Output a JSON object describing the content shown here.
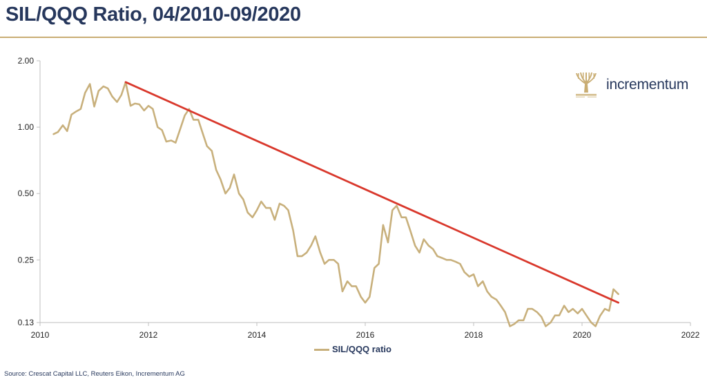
{
  "header": {
    "title": "SIL/QQQ Ratio, 04/2010-09/2020"
  },
  "source": "Source: Crescat Capital LLC, Reuters Eikon, Incrementum AG",
  "logo": {
    "text": "incrementum",
    "icon": "tree-icon"
  },
  "colors": {
    "title": "#26375c",
    "accent_rule": "#c9ad73",
    "series": "#c8b07c",
    "trendline": "#d9382c"
  },
  "chart_data": {
    "type": "line",
    "title": "SIL/QQQ Ratio, 04/2010-09/2020",
    "xlabel": "",
    "ylabel": "",
    "yscale": "log",
    "xlim": [
      2010,
      2022
    ],
    "ylim": [
      0.13,
      2.0
    ],
    "x_ticks": [
      "2010",
      "2012",
      "2014",
      "2016",
      "2018",
      "2020",
      "2022"
    ],
    "y_ticks": [
      "2.00",
      "1.00",
      "0.50",
      "0.25",
      "0.13"
    ],
    "grid": false,
    "legend": "bottom-center",
    "series": [
      {
        "name": "SIL/QQQ ratio",
        "x": [
          2010.25,
          2010.33,
          2010.42,
          2010.5,
          2010.58,
          2010.67,
          2010.75,
          2010.83,
          2010.92,
          2011.0,
          2011.08,
          2011.17,
          2011.25,
          2011.33,
          2011.42,
          2011.5,
          2011.58,
          2011.67,
          2011.75,
          2011.83,
          2011.92,
          2012.0,
          2012.08,
          2012.17,
          2012.25,
          2012.33,
          2012.42,
          2012.5,
          2012.58,
          2012.67,
          2012.75,
          2012.83,
          2012.92,
          2013.0,
          2013.08,
          2013.17,
          2013.25,
          2013.33,
          2013.42,
          2013.5,
          2013.58,
          2013.67,
          2013.75,
          2013.83,
          2013.92,
          2014.0,
          2014.08,
          2014.17,
          2014.25,
          2014.33,
          2014.42,
          2014.5,
          2014.58,
          2014.67,
          2014.75,
          2014.83,
          2014.92,
          2015.0,
          2015.08,
          2015.17,
          2015.25,
          2015.33,
          2015.42,
          2015.5,
          2015.58,
          2015.67,
          2015.75,
          2015.83,
          2015.92,
          2016.0,
          2016.08,
          2016.17,
          2016.25,
          2016.33,
          2016.42,
          2016.5,
          2016.58,
          2016.67,
          2016.75,
          2016.83,
          2016.92,
          2017.0,
          2017.08,
          2017.17,
          2017.25,
          2017.33,
          2017.42,
          2017.5,
          2017.58,
          2017.67,
          2017.75,
          2017.83,
          2017.92,
          2018.0,
          2018.08,
          2018.17,
          2018.25,
          2018.33,
          2018.42,
          2018.5,
          2018.58,
          2018.67,
          2018.75,
          2018.83,
          2018.92,
          2019.0,
          2019.08,
          2019.17,
          2019.25,
          2019.33,
          2019.42,
          2019.5,
          2019.58,
          2019.67,
          2019.75,
          2019.83,
          2019.92,
          2020.0,
          2020.08,
          2020.17,
          2020.25,
          2020.33,
          2020.42,
          2020.5,
          2020.58,
          2020.67
        ],
        "values": [
          0.93,
          0.95,
          1.02,
          0.96,
          1.14,
          1.18,
          1.21,
          1.43,
          1.57,
          1.24,
          1.46,
          1.53,
          1.5,
          1.38,
          1.3,
          1.4,
          1.6,
          1.25,
          1.28,
          1.27,
          1.19,
          1.25,
          1.21,
          1.0,
          0.97,
          0.86,
          0.87,
          0.85,
          0.97,
          1.13,
          1.21,
          1.08,
          1.08,
          0.94,
          0.82,
          0.78,
          0.64,
          0.58,
          0.5,
          0.53,
          0.61,
          0.5,
          0.47,
          0.41,
          0.39,
          0.42,
          0.46,
          0.43,
          0.43,
          0.38,
          0.45,
          0.44,
          0.42,
          0.34,
          0.26,
          0.26,
          0.27,
          0.29,
          0.32,
          0.27,
          0.24,
          0.25,
          0.25,
          0.24,
          0.18,
          0.2,
          0.19,
          0.19,
          0.17,
          0.16,
          0.17,
          0.23,
          0.24,
          0.36,
          0.3,
          0.42,
          0.44,
          0.39,
          0.39,
          0.34,
          0.29,
          0.27,
          0.31,
          0.29,
          0.28,
          0.26,
          0.255,
          0.25,
          0.25,
          0.245,
          0.24,
          0.22,
          0.21,
          0.215,
          0.19,
          0.2,
          0.18,
          0.17,
          0.165,
          0.155,
          0.145,
          0.125,
          0.128,
          0.133,
          0.133,
          0.15,
          0.15,
          0.145,
          0.138,
          0.125,
          0.13,
          0.14,
          0.14,
          0.155,
          0.145,
          0.15,
          0.143,
          0.15,
          0.14,
          0.13,
          0.125,
          0.139,
          0.15,
          0.147,
          0.184,
          0.175
        ]
      }
    ],
    "annotations": [
      {
        "type": "trendline",
        "x": [
          2011.58,
          2020.67
        ],
        "values": [
          1.6,
          0.16
        ]
      }
    ]
  }
}
